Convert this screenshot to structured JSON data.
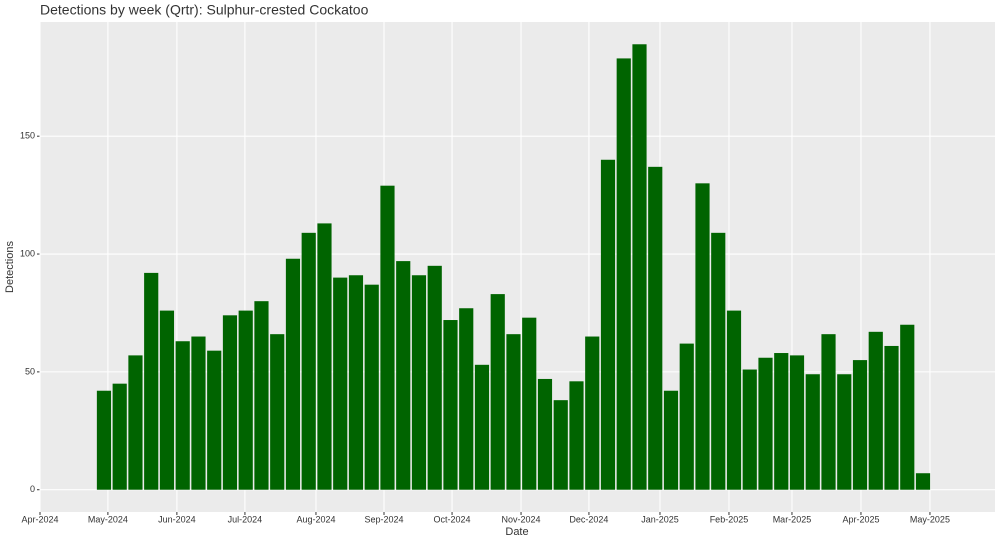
{
  "chart_data": {
    "type": "bar",
    "title": "Detections by week (Qrtr): Sulphur-crested Cockatoo",
    "x_label": "Date",
    "y_label": "Detections",
    "color": "#006400",
    "grid": true,
    "x": [
      0,
      1,
      2,
      3,
      4,
      5,
      6,
      7,
      8,
      9,
      10,
      11,
      12,
      13,
      14,
      15,
      16,
      17,
      18,
      19,
      20,
      21,
      22,
      23,
      24,
      25,
      26,
      27,
      28,
      29,
      30,
      31,
      32,
      33,
      34,
      35,
      36,
      37,
      38,
      39,
      40,
      41,
      42,
      43,
      44,
      45,
      46,
      47,
      48,
      49,
      50,
      51,
      52
    ],
    "values": [
      42,
      45,
      57,
      92,
      76,
      63,
      65,
      59,
      74,
      76,
      80,
      66,
      98,
      109,
      113,
      90,
      91,
      87,
      129,
      97,
      91,
      95,
      72,
      77,
      53,
      83,
      66,
      73,
      47,
      38,
      46,
      65,
      140,
      183,
      189,
      137,
      42,
      62,
      130,
      109,
      76,
      51,
      56,
      58,
      57,
      49,
      66,
      49,
      55,
      67,
      61,
      70,
      7
    ],
    "xlim": [
      -4.06,
      56.57
    ],
    "xticks": [
      {
        "value": -4.06,
        "label": "Apr-2024"
      },
      {
        "value": 0.25,
        "label": "May-2024"
      },
      {
        "value": 4.63,
        "label": "Jun-2024"
      },
      {
        "value": 8.95,
        "label": "Jul-2024"
      },
      {
        "value": 13.46,
        "label": "Aug-2024"
      },
      {
        "value": 17.78,
        "label": "Sep-2024"
      },
      {
        "value": 22.1,
        "label": "Oct-2024"
      },
      {
        "value": 26.48,
        "label": "Nov-2024"
      },
      {
        "value": 30.79,
        "label": "Dec-2024"
      },
      {
        "value": 35.3,
        "label": "Jan-2025"
      },
      {
        "value": 39.68,
        "label": "Feb-2025"
      },
      {
        "value": 43.68,
        "label": "Mar-2025"
      },
      {
        "value": 48.06,
        "label": "Apr-2025"
      },
      {
        "value": 52.44,
        "label": "May-2025"
      }
    ],
    "ylim": [
      -9.45,
      198.45
    ],
    "yticks": [
      0,
      50,
      100,
      150
    ]
  }
}
